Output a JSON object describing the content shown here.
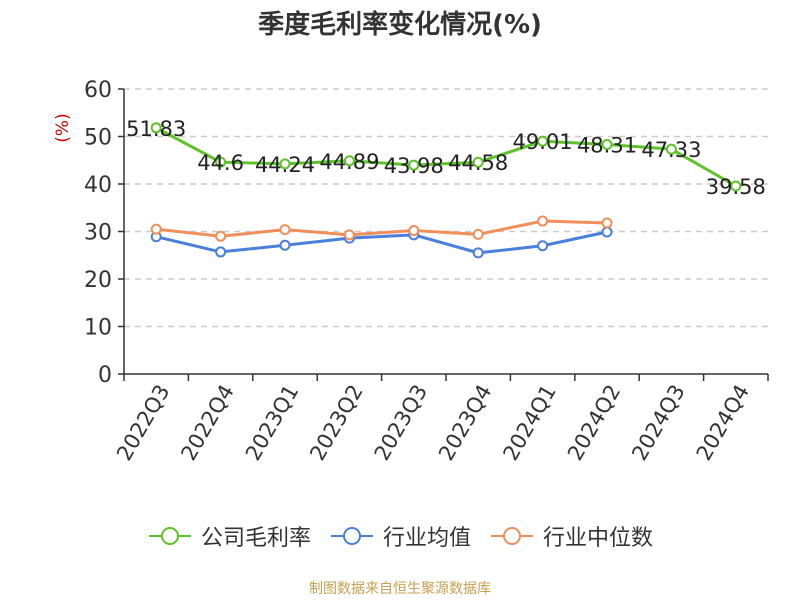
{
  "title": "季度毛利率变化情况(%)",
  "source": "制图数据来自恒生聚源数据库",
  "chart_data": {
    "type": "line",
    "categories": [
      "2022Q3",
      "2022Q4",
      "2023Q1",
      "2023Q2",
      "2023Q3",
      "2023Q4",
      "2024Q1",
      "2024Q2",
      "2024Q3",
      "2024Q4"
    ],
    "ylabel": "(%)",
    "ylim": [
      0,
      60
    ],
    "yticks": [
      0,
      10,
      20,
      30,
      40,
      50,
      60
    ],
    "grid": true,
    "legend_position": "bottom",
    "series": [
      {
        "name": "公司毛利率",
        "color": "#5ec229",
        "show_labels": true,
        "values": [
          51.83,
          44.6,
          44.24,
          44.89,
          43.98,
          44.58,
          49.01,
          48.31,
          47.33,
          39.58
        ]
      },
      {
        "name": "行业均值",
        "color": "#4a7fdc",
        "show_labels": false,
        "values": [
          28.9,
          25.7,
          27.1,
          28.6,
          29.3,
          25.5,
          27.0,
          29.9,
          null,
          null
        ]
      },
      {
        "name": "行业中位数",
        "color": "#f28e5a",
        "show_labels": false,
        "values": [
          30.5,
          29.0,
          30.4,
          29.3,
          30.2,
          29.4,
          32.2,
          31.8,
          null,
          null
        ]
      }
    ]
  }
}
